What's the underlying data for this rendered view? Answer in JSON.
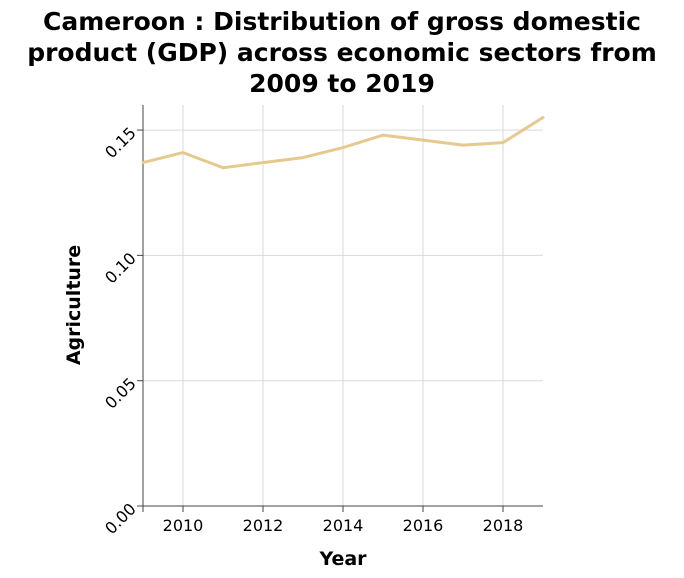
{
  "chart_data": {
    "type": "line",
    "title_lines": [
      "Cameroon : Distribution of gross domestic",
      "product (GDP) across economic sectors from",
      "2009 to 2019"
    ],
    "xlabel": "Year",
    "ylabel": "Agriculture",
    "xlim": [
      2009,
      2019
    ],
    "ylim": [
      0,
      0.16
    ],
    "x_ticks": [
      2010,
      2012,
      2014,
      2016,
      2018
    ],
    "y_ticks": [
      0.0,
      0.05,
      0.1,
      0.15
    ],
    "y_tick_labels": [
      "0.00",
      "0.05",
      "0.10",
      "0.15"
    ],
    "grid": true,
    "series_color": "#e6c98f",
    "x": [
      2009,
      2010,
      2011,
      2012,
      2013,
      2014,
      2015,
      2016,
      2017,
      2018,
      2019
    ],
    "values": [
      0.137,
      0.141,
      0.135,
      0.137,
      0.139,
      0.143,
      0.148,
      0.146,
      0.144,
      0.145,
      0.155
    ]
  }
}
